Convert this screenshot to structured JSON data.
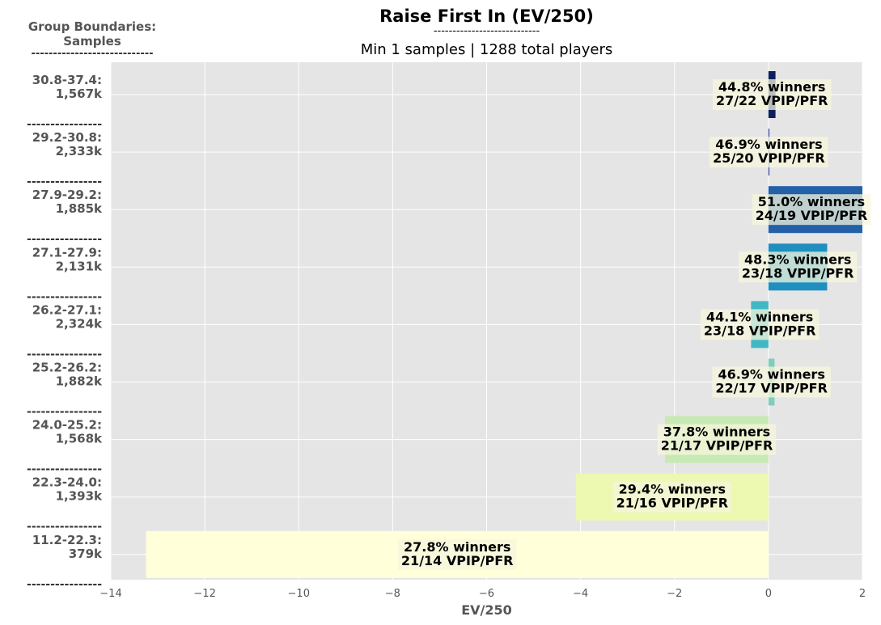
{
  "header": {
    "title": "Raise First In (EV/250)",
    "title_rule": "----------------------------",
    "subtitle": "Min 1 samples | 1288 total players",
    "group_heading_line1": "Group Boundaries:",
    "group_heading_line2": "Samples",
    "group_heading_rule": "----------------------------"
  },
  "chart_data": {
    "type": "bar",
    "orientation": "horizontal",
    "xlabel": "EV/250",
    "xlim": [
      -14,
      2
    ],
    "xticks": [
      -14,
      -12,
      -10,
      -8,
      -6,
      -4,
      -2,
      0,
      2
    ],
    "grid": true,
    "group_separator": "----------------",
    "categories": [
      {
        "range": "30.8-37.4:",
        "samples": "1,567k",
        "value": 0.15,
        "color": "#0c1f5e",
        "winners": "44.8% winners",
        "vpip_pfr": "27/22 VPIP/PFR"
      },
      {
        "range": "29.2-30.8:",
        "samples": "2,333k",
        "value": 0.02,
        "color": "#243c9c",
        "winners": "46.9% winners",
        "vpip_pfr": "25/20 VPIP/PFR"
      },
      {
        "range": "27.9-29.2:",
        "samples": "1,885k",
        "value": 2.0,
        "color": "#2360a8",
        "winners": "51.0% winners",
        "vpip_pfr": "24/19 VPIP/PFR"
      },
      {
        "range": "27.1-27.9:",
        "samples": "2,131k",
        "value": 1.25,
        "color": "#1f8fc0",
        "winners": "48.3% winners",
        "vpip_pfr": "23/18 VPIP/PFR"
      },
      {
        "range": "26.2-27.1:",
        "samples": "2,324k",
        "value": -0.37,
        "color": "#42b7c4",
        "winners": "44.1% winners",
        "vpip_pfr": "23/18 VPIP/PFR"
      },
      {
        "range": "25.2-26.2:",
        "samples": "1,882k",
        "value": 0.13,
        "color": "#7fcdbb",
        "winners": "46.9% winners",
        "vpip_pfr": "22/17 VPIP/PFR"
      },
      {
        "range": "24.0-25.2:",
        "samples": "1,568k",
        "value": -2.2,
        "color": "#c7e9b4",
        "winners": "37.8% winners",
        "vpip_pfr": "21/17 VPIP/PFR"
      },
      {
        "range": "22.3-24.0:",
        "samples": "1,393k",
        "value": -4.1,
        "color": "#edf8b1",
        "winners": "29.4% winners",
        "vpip_pfr": "21/16 VPIP/PFR"
      },
      {
        "range": "11.2-22.3:",
        "samples": "379k",
        "value": -13.25,
        "color": "#ffffd9",
        "winners": "27.8% winners",
        "vpip_pfr": "21/14 VPIP/PFR"
      }
    ],
    "colors": {
      "plot_background": "#e5e5e5",
      "grid": "#ffffff",
      "label_box": "#f5f5dc",
      "axis_text": "#555555"
    }
  }
}
